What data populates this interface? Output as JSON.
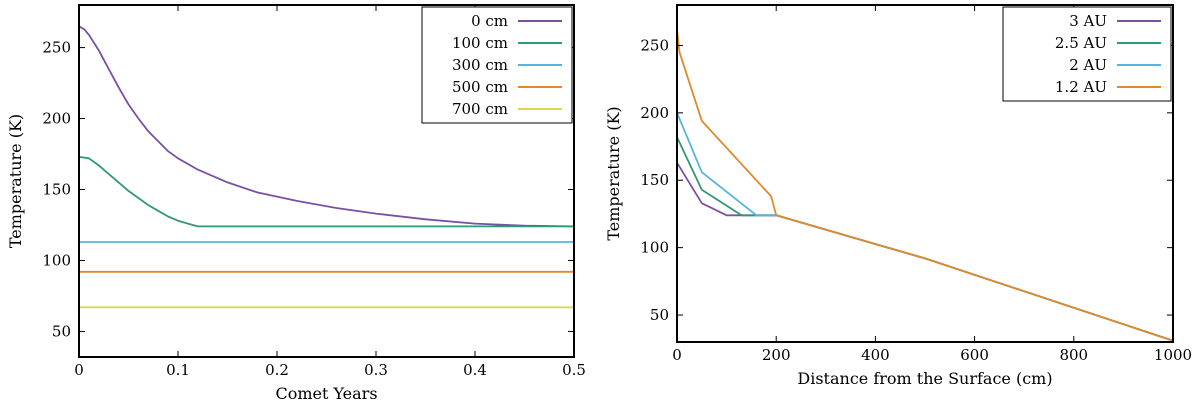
{
  "chart_data": [
    {
      "type": "line",
      "title": "",
      "xlabel": "Comet Years",
      "ylabel": "Temperature (K)",
      "xlim": [
        0,
        0.5
      ],
      "ylim": [
        32,
        280
      ],
      "xticks": [
        0,
        0.1,
        0.2,
        0.3,
        0.4,
        0.5
      ],
      "xtick_labels": [
        "0",
        "0.1",
        "0.2",
        "0.3",
        "0.4",
        "0.5"
      ],
      "yticks": [
        50,
        100,
        150,
        200,
        250
      ],
      "ytick_labels": [
        "50",
        "100",
        "150",
        "200",
        "250"
      ],
      "legend_position": "top-right",
      "series": [
        {
          "name": "0 cm",
          "color": "#7b4fa3",
          "x": [
            0,
            0.005,
            0.01,
            0.02,
            0.03,
            0.04,
            0.05,
            0.06,
            0.07,
            0.08,
            0.09,
            0.1,
            0.12,
            0.15,
            0.18,
            0.22,
            0.26,
            0.3,
            0.35,
            0.4,
            0.45,
            0.5
          ],
          "y": [
            265,
            263,
            259,
            248,
            235,
            222,
            210,
            200,
            191,
            184,
            177,
            172,
            164,
            155,
            148,
            142,
            137,
            133,
            129,
            126,
            124.5,
            124
          ]
        },
        {
          "name": "100 cm",
          "color": "#2e9a73",
          "x": [
            0,
            0.01,
            0.02,
            0.03,
            0.04,
            0.05,
            0.06,
            0.07,
            0.08,
            0.09,
            0.1,
            0.11,
            0.12,
            0.2,
            0.3,
            0.4,
            0.5
          ],
          "y": [
            173,
            172,
            167,
            161,
            155,
            149,
            144,
            139,
            135,
            131,
            128,
            126,
            124,
            124,
            124,
            124,
            124
          ]
        },
        {
          "name": "300 cm",
          "color": "#56b4e0",
          "x": [
            0,
            0.5
          ],
          "y": [
            113,
            113
          ]
        },
        {
          "name": "500 cm",
          "color": "#e08a2c",
          "x": [
            0,
            0.5
          ],
          "y": [
            92,
            92
          ]
        },
        {
          "name": "700 cm",
          "color": "#dcd84a",
          "x": [
            0,
            0.5
          ],
          "y": [
            67,
            67
          ]
        }
      ]
    },
    {
      "type": "line",
      "title": "",
      "xlabel": "Distance from the Surface (cm)",
      "ylabel": "Temperature (K)",
      "xlim": [
        0,
        1000
      ],
      "ylim": [
        30,
        280
      ],
      "xticks": [
        0,
        200,
        400,
        600,
        800,
        1000
      ],
      "xtick_labels": [
        "0",
        "200",
        "400",
        "600",
        "800",
        "1000"
      ],
      "yticks": [
        50,
        100,
        150,
        200,
        250
      ],
      "ytick_labels": [
        "50",
        "100",
        "150",
        "200",
        "250"
      ],
      "legend_position": "top-right",
      "series": [
        {
          "name": "3 AU",
          "color": "#7b4fa3",
          "x": [
            0,
            50,
            100,
            200,
            500,
            1000
          ],
          "y": [
            163,
            133,
            124,
            124,
            92,
            31
          ]
        },
        {
          "name": "2.5 AU",
          "color": "#2e9a73",
          "x": [
            0,
            50,
            130,
            200,
            500,
            1000
          ],
          "y": [
            182,
            143,
            124,
            124,
            92,
            31
          ]
        },
        {
          "name": "2 AU",
          "color": "#56b4e0",
          "x": [
            0,
            50,
            160,
            200,
            500,
            1000
          ],
          "y": [
            200,
            156,
            124,
            124,
            92,
            31
          ]
        },
        {
          "name": "1.2 AU",
          "color": "#e08a2c",
          "x": [
            0,
            5,
            50,
            190,
            200,
            500,
            1000
          ],
          "y": [
            262,
            245,
            194,
            138,
            124,
            92,
            31
          ]
        }
      ]
    }
  ]
}
